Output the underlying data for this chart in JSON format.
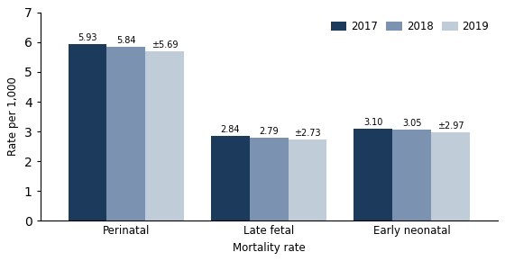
{
  "categories": [
    "Perinatal",
    "Late fetal",
    "Early neonatal"
  ],
  "years": [
    "2017",
    "2018",
    "2019"
  ],
  "values": {
    "2017": [
      5.93,
      2.84,
      3.1
    ],
    "2018": [
      5.84,
      2.79,
      3.05
    ],
    "2019": [
      5.69,
      2.73,
      2.97
    ]
  },
  "bar_colors": {
    "2017": "#1b3a5c",
    "2018": "#7b93b0",
    "2019": "#c0cdd8"
  },
  "labels": {
    "2017": [
      "5.93",
      "2.84",
      "3.10"
    ],
    "2018": [
      "5.84",
      "2.79",
      "3.05"
    ],
    "2019": [
      "±5.69",
      "±2.73",
      "±2.97"
    ]
  },
  "ylabel": "Rate per 1,000",
  "xlabel": "Mortality rate",
  "ylim": [
    0,
    7
  ],
  "yticks": [
    0,
    1,
    2,
    3,
    4,
    5,
    6,
    7
  ],
  "bar_width": 0.27,
  "figsize": [
    5.6,
    2.9
  ],
  "dpi": 100
}
